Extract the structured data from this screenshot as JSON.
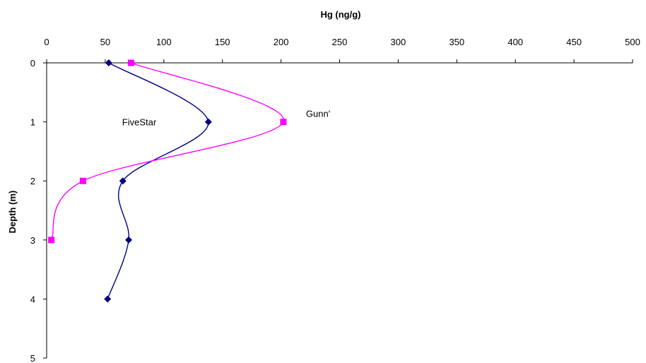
{
  "chart_data": {
    "type": "line",
    "xlabel": "Hg (ng/g)",
    "ylabel": "Depth (m)",
    "xlim": [
      0,
      500
    ],
    "ylim": [
      0,
      5
    ],
    "x_ticks": [
      0,
      50,
      100,
      150,
      200,
      250,
      300,
      350,
      400,
      450,
      500
    ],
    "y_ticks": [
      0,
      1,
      2,
      3,
      4,
      5
    ],
    "x_axis_position": "top",
    "y_axis_inverted": true,
    "grid": false,
    "legend": "none",
    "series": [
      {
        "name": "FiveStar",
        "color": "#000080",
        "marker": "diamond",
        "smoothed": true,
        "points": [
          {
            "x": 53,
            "y": 0
          },
          {
            "x": 138,
            "y": 1
          },
          {
            "x": 65,
            "y": 2
          },
          {
            "x": 70,
            "y": 3
          },
          {
            "x": 52,
            "y": 4
          }
        ]
      },
      {
        "name": "Gunn'",
        "color": "#ff00ff",
        "marker": "square",
        "smoothed": true,
        "points": [
          {
            "x": 72,
            "y": 0
          },
          {
            "x": 202,
            "y": 1
          },
          {
            "x": 31,
            "y": 2
          },
          {
            "x": 4,
            "y": 3
          }
        ]
      }
    ]
  }
}
